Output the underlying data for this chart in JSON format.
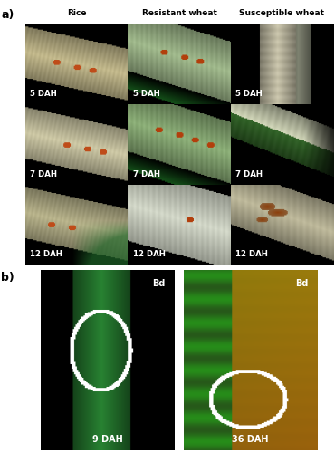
{
  "fig_width": 3.7,
  "fig_height": 5.0,
  "dpi": 100,
  "bg_color": "#ffffff",
  "panel_a_label": "a)",
  "panel_b_label": "b)",
  "col_headers": [
    "Rice",
    "Resistant wheat",
    "Susceptible wheat"
  ],
  "row_labels": [
    "5 DAH",
    "7 DAH",
    "12 DAH"
  ],
  "panel_b_labels": [
    "9 DAH",
    "36 DAH"
  ],
  "panel_b_top_labels": [
    "Bd",
    "Bd"
  ],
  "label_color": "#ffffff",
  "header_color": "#000000",
  "panel_label_color": "#000000"
}
